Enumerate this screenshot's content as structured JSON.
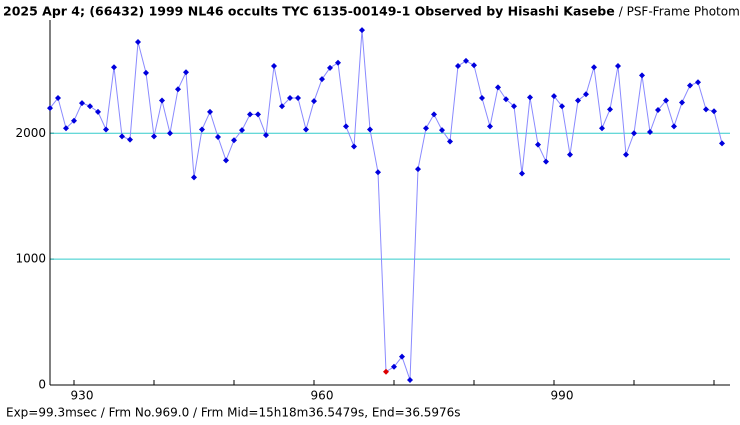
{
  "chart_data": {
    "type": "line",
    "title": "2025 Apr 4; (66432) 1999 NL46 occults TYC 6135-00149-1 Observed by Hisashi Kasebe",
    "subtitle": "/ PSF-Frame Photome",
    "footer": "Exp=99.3msec / Frm No.969.0 / Frm Mid=15h18m36.5479s,  End=36.5976s",
    "x": [
      927,
      928,
      929,
      930,
      931,
      932,
      933,
      934,
      935,
      936,
      937,
      938,
      939,
      940,
      941,
      942,
      943,
      944,
      945,
      946,
      947,
      948,
      949,
      950,
      951,
      952,
      953,
      954,
      955,
      956,
      957,
      958,
      959,
      960,
      961,
      962,
      963,
      964,
      965,
      966,
      967,
      968,
      969,
      970,
      971,
      972,
      973,
      974,
      975,
      976,
      977,
      978,
      979,
      980,
      981,
      982,
      983,
      984,
      985,
      986,
      987,
      988,
      989,
      990,
      991,
      992,
      993,
      994,
      995,
      996,
      997,
      998,
      999,
      1000,
      1001,
      1002,
      1003,
      1004,
      1005,
      1006,
      1007,
      1008,
      1009,
      1010,
      1011
    ],
    "series": [
      {
        "color": "#0000dd",
        "line_color": "#8a8aff",
        "values": [
          2200,
          2280,
          2040,
          2100,
          2240,
          2215,
          2170,
          2030,
          2525,
          1975,
          1950,
          2725,
          2480,
          1975,
          2260,
          2000,
          2350,
          2485,
          1650,
          2030,
          2170,
          1970,
          1785,
          1945,
          2025,
          2150,
          2150,
          1985,
          2535,
          2215,
          2280,
          2280,
          2030,
          2255,
          2430,
          2520,
          2560,
          2055,
          1895,
          2820,
          2030,
          1690,
          105,
          145,
          225,
          40,
          1715,
          2040,
          2150,
          2025,
          1935,
          2535,
          2575,
          2540,
          2280,
          2055,
          2365,
          2270,
          2215,
          1680,
          2285,
          1910,
          1775,
          2295,
          2215,
          1830,
          2260,
          2310,
          2525,
          2040,
          2190,
          2535,
          1830,
          2000,
          2460,
          2010,
          2185,
          2260,
          2055,
          2245,
          2380,
          2405,
          2190,
          2175,
          1920
        ]
      }
    ],
    "highlight": {
      "x": 969,
      "color": "#dd0000"
    },
    "xlim": [
      927,
      1012
    ],
    "xticks": [
      930,
      960,
      990
    ],
    "minor_xticks": [
      940,
      950,
      970,
      980,
      1000,
      1010
    ],
    "ylim": [
      0,
      2900
    ],
    "yticks": [
      0,
      1000,
      2000
    ],
    "grid": true,
    "grid_color": "#33cccc"
  }
}
